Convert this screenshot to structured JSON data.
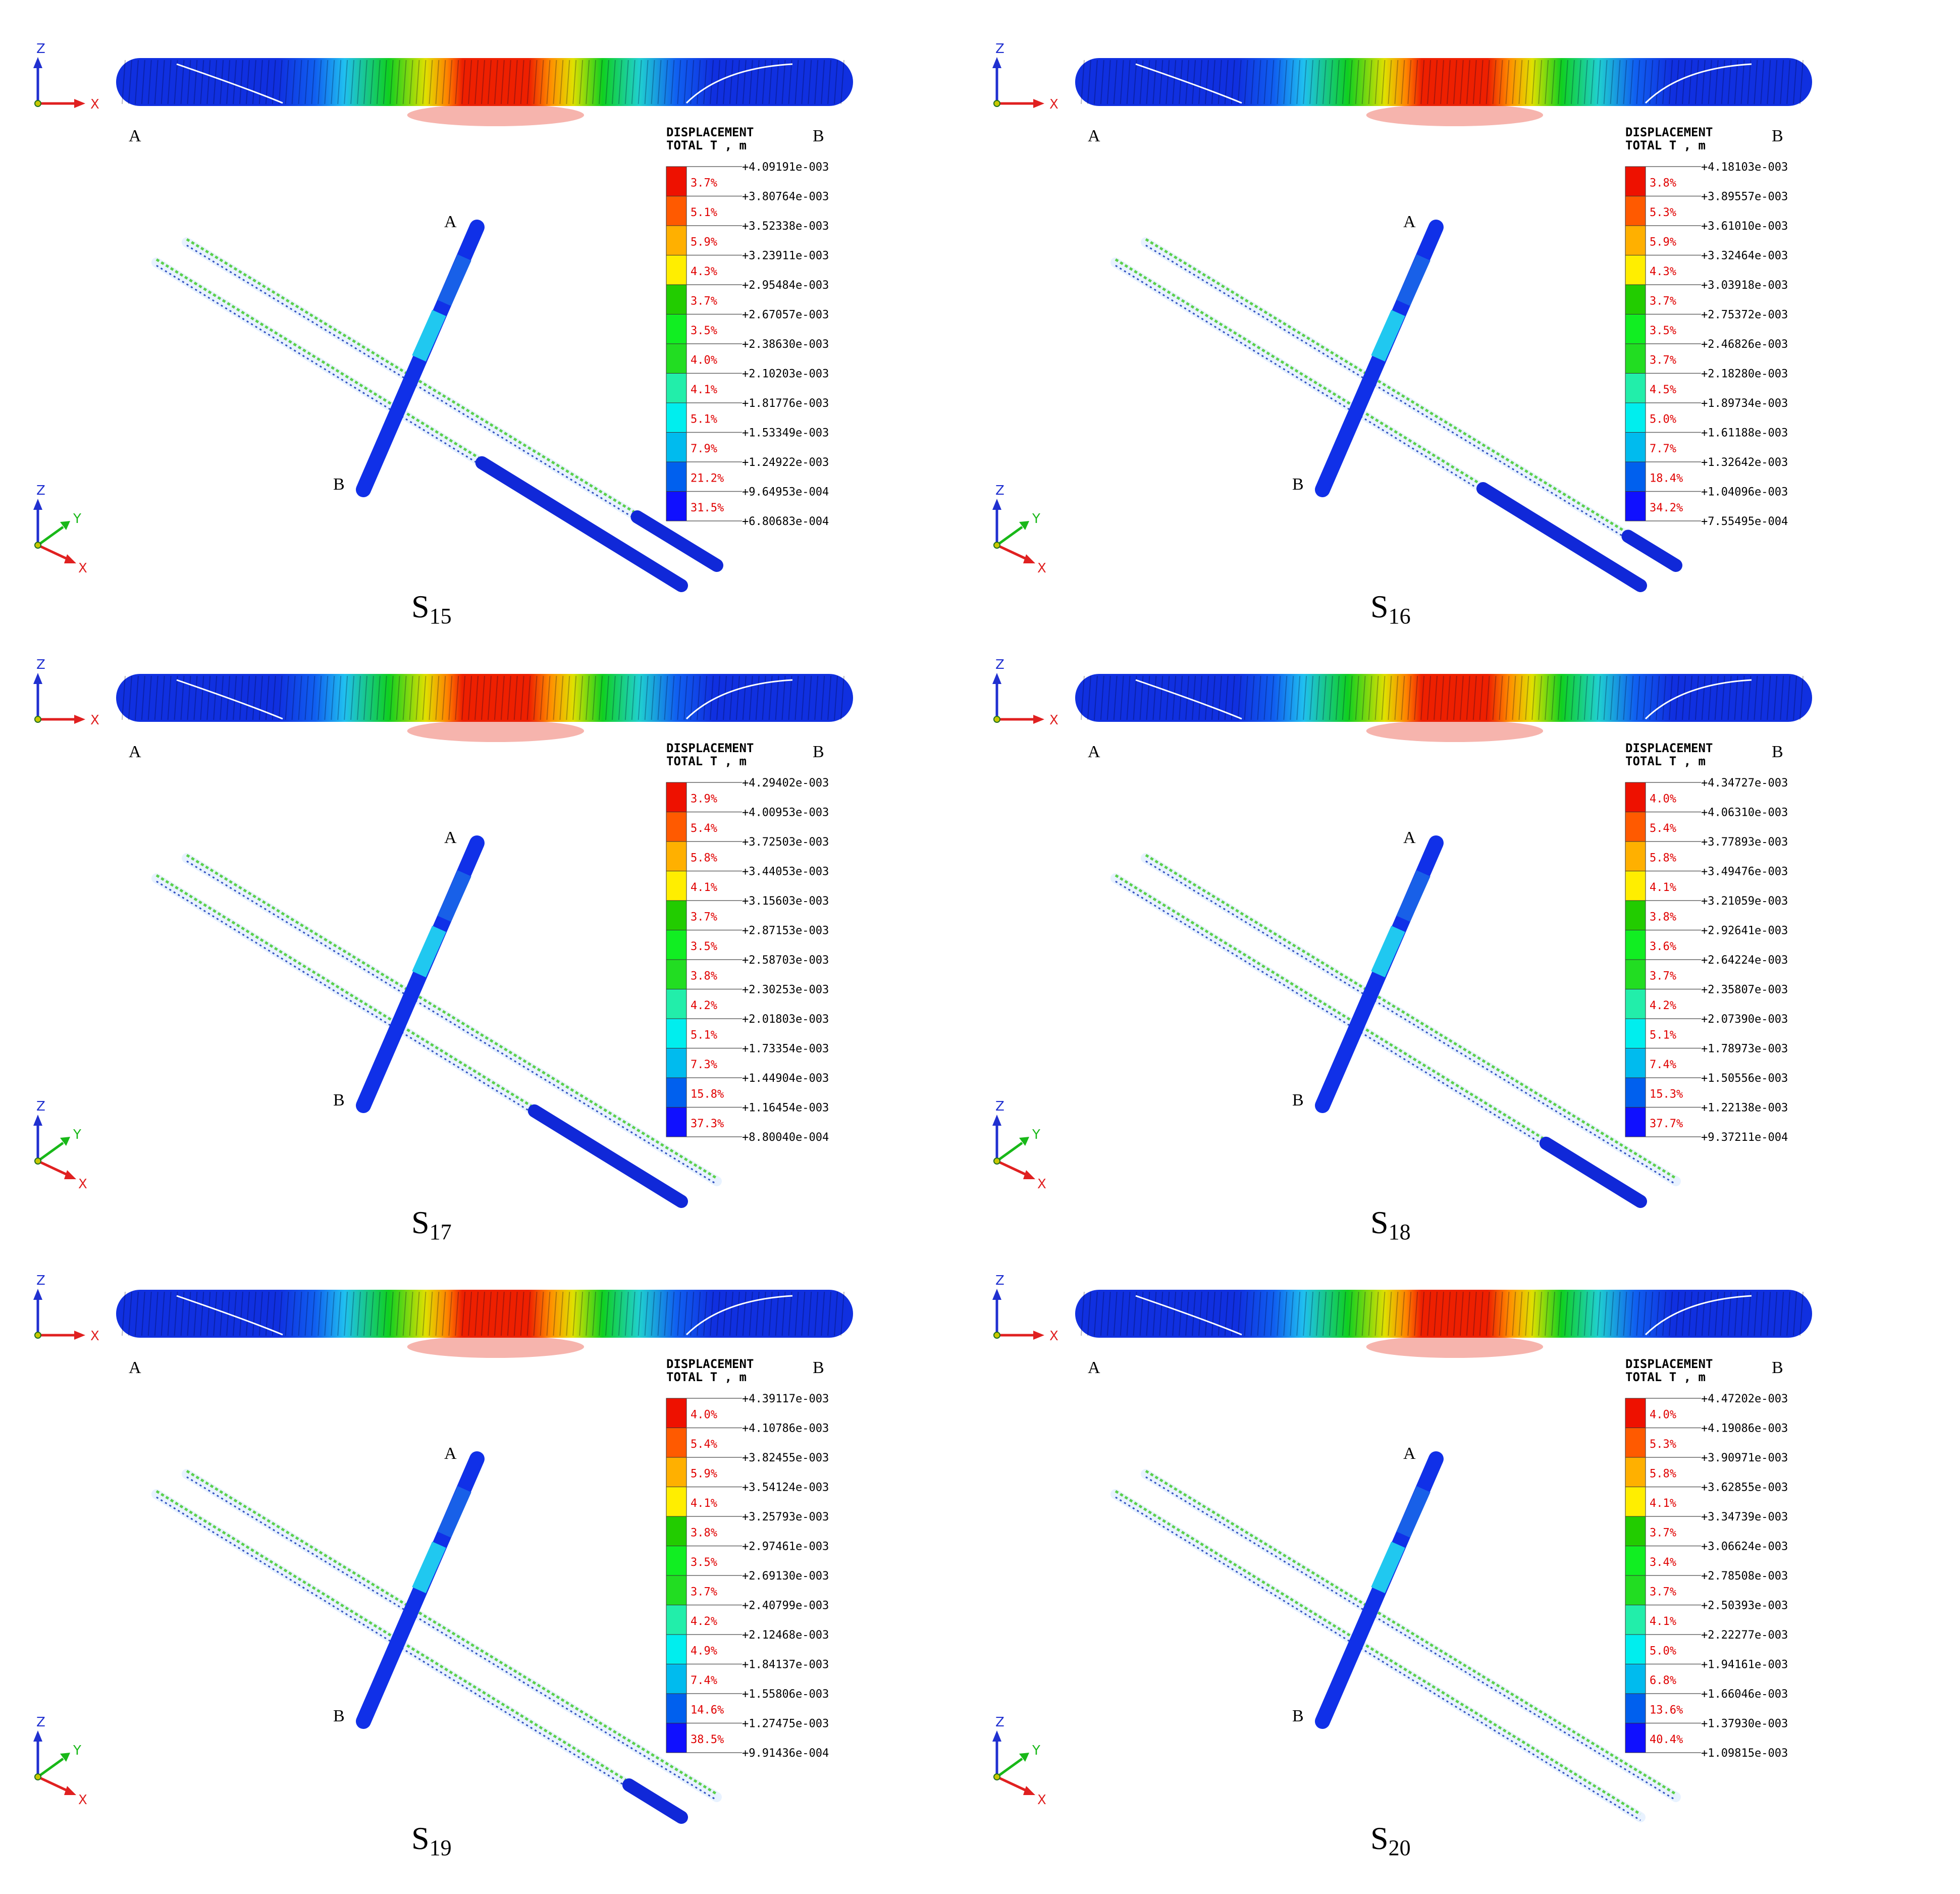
{
  "axes": {
    "x": "X",
    "y": "Y",
    "z": "Z"
  },
  "point_labels": {
    "a": "A",
    "b": "B"
  },
  "legend": {
    "title1": "DISPLACEMENT",
    "title2": "TOTAL T , m",
    "colors": [
      "#ee1100",
      "#ff5a00",
      "#ffb000",
      "#ffee00",
      "#22cc00",
      "#11ee22",
      "#22dd22",
      "#22eeaa",
      "#00eeee",
      "#00bbee",
      "#0060ee",
      "#1010ff"
    ]
  },
  "panels": [
    {
      "label": "S",
      "sub": "15",
      "values": [
        "+4.09191e-003",
        "+3.80764e-003",
        "+3.52338e-003",
        "+3.23911e-003",
        "+2.95484e-003",
        "+2.67057e-003",
        "+2.38630e-003",
        "+2.10203e-003",
        "+1.81776e-003",
        "+1.53349e-003",
        "+1.24922e-003",
        "+9.64953e-004",
        "+6.80683e-004"
      ],
      "percents": [
        "3.7%",
        "5.1%",
        "5.9%",
        "4.3%",
        "3.7%",
        "3.5%",
        "4.0%",
        "4.1%",
        "5.1%",
        "7.9%",
        "21.2%",
        "31.5%"
      ]
    },
    {
      "label": "S",
      "sub": "16",
      "values": [
        "+4.18103e-003",
        "+3.89557e-003",
        "+3.61010e-003",
        "+3.32464e-003",
        "+3.03918e-003",
        "+2.75372e-003",
        "+2.46826e-003",
        "+2.18280e-003",
        "+1.89734e-003",
        "+1.61188e-003",
        "+1.32642e-003",
        "+1.04096e-003",
        "+7.55495e-004"
      ],
      "percents": [
        "3.8%",
        "5.3%",
        "5.9%",
        "4.3%",
        "3.7%",
        "3.5%",
        "3.7%",
        "4.5%",
        "5.0%",
        "7.7%",
        "18.4%",
        "34.2%"
      ]
    },
    {
      "label": "S",
      "sub": "17",
      "values": [
        "+4.29402e-003",
        "+4.00953e-003",
        "+3.72503e-003",
        "+3.44053e-003",
        "+3.15603e-003",
        "+2.87153e-003",
        "+2.58703e-003",
        "+2.30253e-003",
        "+2.01803e-003",
        "+1.73354e-003",
        "+1.44904e-003",
        "+1.16454e-003",
        "+8.80040e-004"
      ],
      "percents": [
        "3.9%",
        "5.4%",
        "5.8%",
        "4.1%",
        "3.7%",
        "3.5%",
        "3.8%",
        "4.2%",
        "5.1%",
        "7.3%",
        "15.8%",
        "37.3%"
      ]
    },
    {
      "label": "S",
      "sub": "18",
      "values": [
        "+4.34727e-003",
        "+4.06310e-003",
        "+3.77893e-003",
        "+3.49476e-003",
        "+3.21059e-003",
        "+2.92641e-003",
        "+2.64224e-003",
        "+2.35807e-003",
        "+2.07390e-003",
        "+1.78973e-003",
        "+1.50556e-003",
        "+1.22138e-003",
        "+9.37211e-004"
      ],
      "percents": [
        "4.0%",
        "5.4%",
        "5.8%",
        "4.1%",
        "3.8%",
        "3.6%",
        "3.7%",
        "4.2%",
        "5.1%",
        "7.4%",
        "15.3%",
        "37.7%"
      ]
    },
    {
      "label": "S",
      "sub": "19",
      "values": [
        "+4.39117e-003",
        "+4.10786e-003",
        "+3.82455e-003",
        "+3.54124e-003",
        "+3.25793e-003",
        "+2.97461e-003",
        "+2.69130e-003",
        "+2.40799e-003",
        "+2.12468e-003",
        "+1.84137e-003",
        "+1.55806e-003",
        "+1.27475e-003",
        "+9.91436e-004"
      ],
      "percents": [
        "4.0%",
        "5.4%",
        "5.9%",
        "4.1%",
        "3.8%",
        "3.5%",
        "3.7%",
        "4.2%",
        "4.9%",
        "7.4%",
        "14.6%",
        "38.5%"
      ]
    },
    {
      "label": "S",
      "sub": "20",
      "values": [
        "+4.47202e-003",
        "+4.19086e-003",
        "+3.90971e-003",
        "+3.62855e-003",
        "+3.34739e-003",
        "+3.06624e-003",
        "+2.78508e-003",
        "+2.50393e-003",
        "+2.22277e-003",
        "+1.94161e-003",
        "+1.66046e-003",
        "+1.37930e-003",
        "+1.09815e-003"
      ],
      "percents": [
        "4.0%",
        "5.3%",
        "5.8%",
        "4.1%",
        "3.7%",
        "3.4%",
        "3.7%",
        "4.1%",
        "5.0%",
        "6.8%",
        "13.6%",
        "40.4%"
      ]
    }
  ]
}
